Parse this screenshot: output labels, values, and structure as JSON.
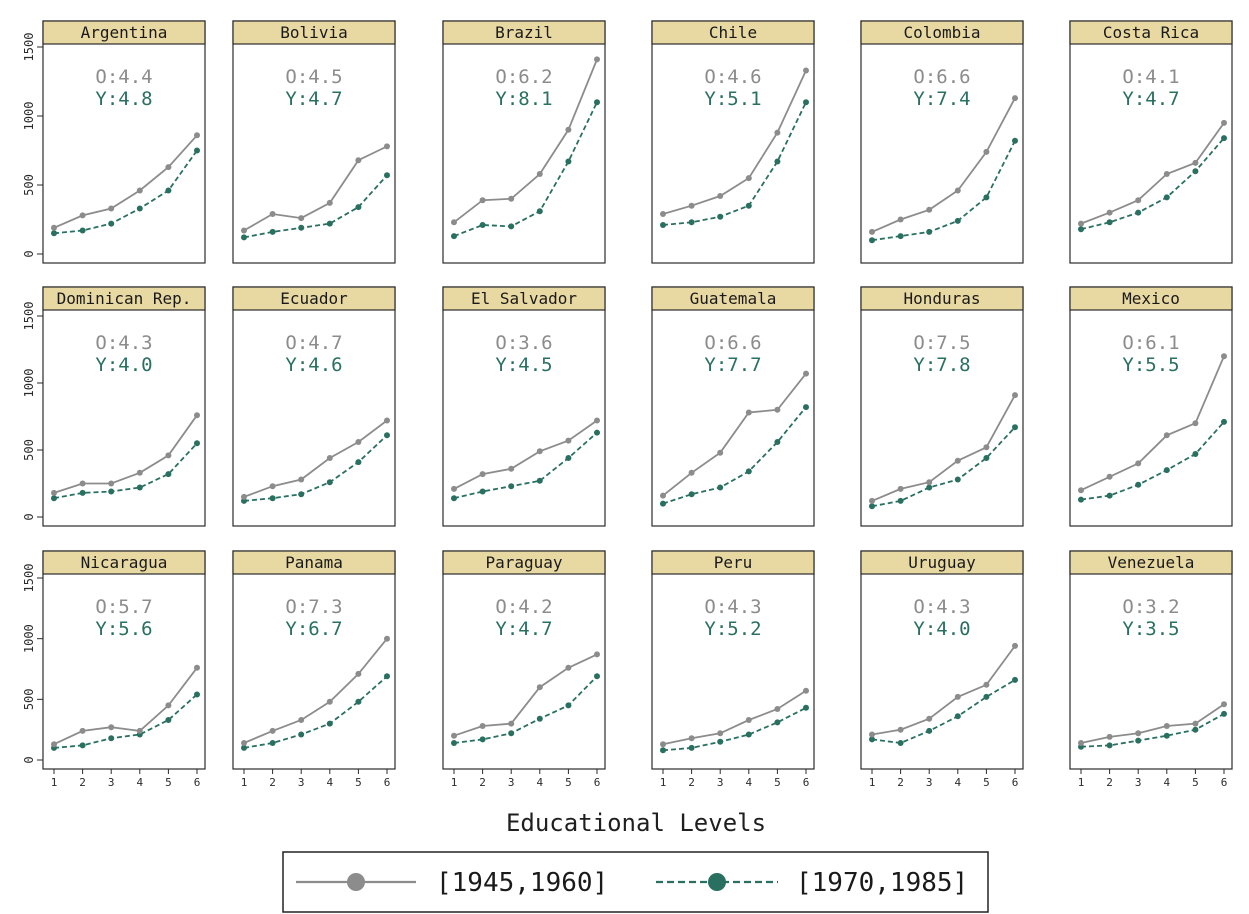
{
  "chart_data": {
    "type": "line",
    "layout": "small-multiples",
    "xlabel": "Educational Levels",
    "x": [
      1,
      2,
      3,
      4,
      5,
      6
    ],
    "xticks": [
      "1",
      "2",
      "3",
      "4",
      "5",
      "6"
    ],
    "ylim": [
      0,
      1700
    ],
    "yticks": [
      0,
      500,
      1000,
      1500
    ],
    "grid": false,
    "legend_position": "bottom-center",
    "series_styles": [
      {
        "name": "[1945,1960]",
        "color": "#8c8c8c",
        "dash": "solid"
      },
      {
        "name": "[1970,1985]",
        "color": "#2a7061",
        "dash": "dashed"
      }
    ],
    "panels": [
      {
        "title": "Argentina",
        "o_label": "O:4.4",
        "y_label": "Y:4.8",
        "series": [
          {
            "name": "[1945,1960]",
            "values": [
              190,
              280,
              330,
              460,
              630,
              860
            ]
          },
          {
            "name": "[1970,1985]",
            "values": [
              150,
              170,
              220,
              330,
              460,
              750
            ]
          }
        ]
      },
      {
        "title": "Bolivia",
        "o_label": "O:4.5",
        "y_label": "Y:4.7",
        "series": [
          {
            "name": "[1945,1960]",
            "values": [
              170,
              290,
              260,
              370,
              680,
              780
            ]
          },
          {
            "name": "[1970,1985]",
            "values": [
              120,
              160,
              190,
              220,
              340,
              570
            ]
          }
        ]
      },
      {
        "title": "Brazil",
        "o_label": "O:6.2",
        "y_label": "Y:8.1",
        "series": [
          {
            "name": "[1945,1960]",
            "values": [
              230,
              390,
              400,
              580,
              900,
              1410
            ]
          },
          {
            "name": "[1970,1985]",
            "values": [
              130,
              210,
              200,
              310,
              670,
              1100
            ]
          }
        ]
      },
      {
        "title": "Chile",
        "o_label": "O:4.6",
        "y_label": "Y:5.1",
        "series": [
          {
            "name": "[1945,1960]",
            "values": [
              290,
              350,
              420,
              550,
              880,
              1330
            ]
          },
          {
            "name": "[1970,1985]",
            "values": [
              210,
              230,
              270,
              350,
              670,
              1100
            ]
          }
        ]
      },
      {
        "title": "Colombia",
        "o_label": "O:6.6",
        "y_label": "Y:7.4",
        "series": [
          {
            "name": "[1945,1960]",
            "values": [
              160,
              250,
              320,
              460,
              740,
              1130
            ]
          },
          {
            "name": "[1970,1985]",
            "values": [
              100,
              130,
              160,
              240,
              410,
              820
            ]
          }
        ]
      },
      {
        "title": "Costa Rica",
        "o_label": "O:4.1",
        "y_label": "Y:4.7",
        "series": [
          {
            "name": "[1945,1960]",
            "values": [
              220,
              300,
              390,
              580,
              660,
              950
            ]
          },
          {
            "name": "[1970,1985]",
            "values": [
              180,
              230,
              300,
              410,
              600,
              840
            ]
          }
        ]
      },
      {
        "title": "Dominican Rep.",
        "o_label": "O:4.3",
        "y_label": "Y:4.0",
        "series": [
          {
            "name": "[1945,1960]",
            "values": [
              180,
              250,
              250,
              330,
              460,
              760
            ]
          },
          {
            "name": "[1970,1985]",
            "values": [
              140,
              180,
              190,
              220,
              320,
              550
            ]
          }
        ]
      },
      {
        "title": "Ecuador",
        "o_label": "O:4.7",
        "y_label": "Y:4.6",
        "series": [
          {
            "name": "[1945,1960]",
            "values": [
              150,
              230,
              280,
              440,
              560,
              720
            ]
          },
          {
            "name": "[1970,1985]",
            "values": [
              120,
              140,
              170,
              260,
              410,
              610
            ]
          }
        ]
      },
      {
        "title": "El Salvador",
        "o_label": "O:3.6",
        "y_label": "Y:4.5",
        "series": [
          {
            "name": "[1945,1960]",
            "values": [
              210,
              320,
              360,
              490,
              570,
              720
            ]
          },
          {
            "name": "[1970,1985]",
            "values": [
              140,
              190,
              230,
              270,
              440,
              630
            ]
          }
        ]
      },
      {
        "title": "Guatemala",
        "o_label": "O:6.6",
        "y_label": "Y:7.7",
        "series": [
          {
            "name": "[1945,1960]",
            "values": [
              160,
              330,
              480,
              780,
              800,
              1070
            ]
          },
          {
            "name": "[1970,1985]",
            "values": [
              100,
              170,
              220,
              340,
              560,
              820
            ]
          }
        ]
      },
      {
        "title": "Honduras",
        "o_label": "O:7.5",
        "y_label": "Y:7.8",
        "series": [
          {
            "name": "[1945,1960]",
            "values": [
              120,
              210,
              260,
              420,
              520,
              910
            ]
          },
          {
            "name": "[1970,1985]",
            "values": [
              80,
              120,
              220,
              280,
              440,
              670
            ]
          }
        ]
      },
      {
        "title": "Mexico",
        "o_label": "O:6.1",
        "y_label": "Y:5.5",
        "series": [
          {
            "name": "[1945,1960]",
            "values": [
              200,
              300,
              400,
              610,
              700,
              1200
            ]
          },
          {
            "name": "[1970,1985]",
            "values": [
              130,
              160,
              240,
              350,
              470,
              710
            ]
          }
        ]
      },
      {
        "title": "Nicaragua",
        "o_label": "O:5.7",
        "y_label": "Y:5.6",
        "series": [
          {
            "name": "[1945,1960]",
            "values": [
              130,
              240,
              270,
              240,
              450,
              760
            ]
          },
          {
            "name": "[1970,1985]",
            "values": [
              100,
              120,
              180,
              210,
              330,
              540
            ]
          }
        ]
      },
      {
        "title": "Panama",
        "o_label": "O:7.3",
        "y_label": "Y:6.7",
        "series": [
          {
            "name": "[1945,1960]",
            "values": [
              140,
              240,
              330,
              480,
              710,
              1000
            ]
          },
          {
            "name": "[1970,1985]",
            "values": [
              100,
              140,
              210,
              300,
              480,
              690
            ]
          }
        ]
      },
      {
        "title": "Paraguay",
        "o_label": "O:4.2",
        "y_label": "Y:4.7",
        "series": [
          {
            "name": "[1945,1960]",
            "values": [
              200,
              280,
              300,
              600,
              760,
              870
            ]
          },
          {
            "name": "[1970,1985]",
            "values": [
              140,
              170,
              220,
              340,
              450,
              690
            ]
          }
        ]
      },
      {
        "title": "Peru",
        "o_label": "O:4.3",
        "y_label": "Y:5.2",
        "series": [
          {
            "name": "[1945,1960]",
            "values": [
              130,
              180,
              220,
              330,
              420,
              570
            ]
          },
          {
            "name": "[1970,1985]",
            "values": [
              80,
              100,
              150,
              210,
              310,
              430
            ]
          }
        ]
      },
      {
        "title": "Uruguay",
        "o_label": "O:4.3",
        "y_label": "Y:4.0",
        "series": [
          {
            "name": "[1945,1960]",
            "values": [
              210,
              250,
              340,
              520,
              620,
              940
            ]
          },
          {
            "name": "[1970,1985]",
            "values": [
              170,
              140,
              240,
              360,
              520,
              660
            ]
          }
        ]
      },
      {
        "title": "Venezuela",
        "o_label": "O:3.2",
        "y_label": "Y:3.5",
        "series": [
          {
            "name": "[1945,1960]",
            "values": [
              140,
              190,
              220,
              280,
              300,
              460
            ]
          },
          {
            "name": "[1970,1985]",
            "values": [
              110,
              120,
              160,
              200,
              250,
              380
            ]
          }
        ]
      }
    ]
  }
}
